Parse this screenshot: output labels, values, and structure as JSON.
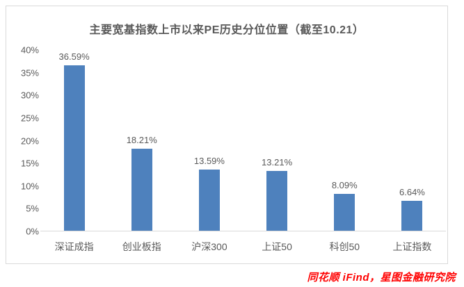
{
  "title": "主要宽基指数上市以来PE历史分位位置（截至10.21）",
  "source_note": "同花顺 iFind，星图金融研究院",
  "colors": {
    "bar": "#4e81bd",
    "title_text": "#595959",
    "axis_text": "#595959",
    "border": "#d9d9d9",
    "source_text": "#ff0000"
  },
  "chart_data": {
    "type": "bar",
    "title": "主要宽基指数上市以来PE历史分位位置（截至10.21）",
    "categories": [
      "深证成指",
      "创业板指",
      "沪深300",
      "上证50",
      "科创50",
      "上证指数"
    ],
    "values": [
      36.59,
      18.21,
      13.59,
      13.21,
      8.09,
      6.64
    ],
    "data_labels": [
      "36.59%",
      "18.21%",
      "13.59%",
      "13.21%",
      "8.09%",
      "6.64%"
    ],
    "xlabel": "",
    "ylabel": "",
    "ylim": [
      0,
      40
    ],
    "ytick_step": 5,
    "ytick_labels": [
      "0%",
      "5%",
      "10%",
      "15%",
      "20%",
      "25%",
      "30%",
      "35%",
      "40%"
    ],
    "grid": false,
    "legend": "none",
    "bar_color": "#4e81bd"
  }
}
